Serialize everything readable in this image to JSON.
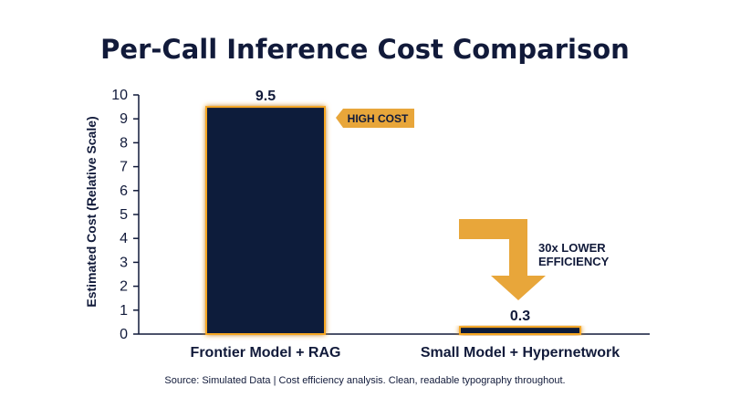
{
  "chart_data": {
    "type": "bar",
    "title": "Per-Call Inference Cost Comparison",
    "categories": [
      "Frontier Model + RAG",
      "Small Model + Hypernetwork"
    ],
    "values": [
      9.5,
      0.3
    ],
    "value_labels": [
      "9.5",
      "0.3"
    ],
    "xlabel": "",
    "ylabel": "Estimated Cost (Relative Scale)",
    "ylim": [
      0,
      10
    ],
    "yticks": [
      0,
      1,
      2,
      3,
      4,
      5,
      6,
      7,
      8,
      9,
      10
    ],
    "grid": false,
    "legend": "none",
    "annotations": {
      "high_cost_badge": "HIGH COST",
      "efficiency_line1": "30x LOWER",
      "efficiency_line2": "EFFICIENCY"
    },
    "source": "Source: Simulated Data | Cost efficiency analysis. Clean, readable typography throughout."
  },
  "colors": {
    "bar": "#111a3a",
    "bar_glow": "#f5a623",
    "accent": "#e8a63a",
    "text": "#111a3a",
    "background": "#ffffff"
  },
  "icons": {
    "efficiency_arrow": "bent-down-arrow-icon"
  }
}
